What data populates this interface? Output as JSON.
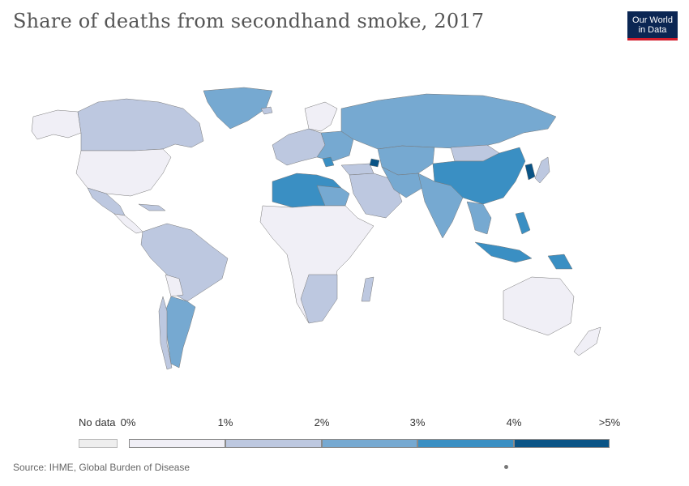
{
  "title": "Share of deaths from secondhand smoke, 2017",
  "logo": {
    "line1": "Our World",
    "line2": "in Data"
  },
  "legend": {
    "no_data_label": "No data",
    "ticks": [
      "0%",
      "1%",
      "2%",
      "3%",
      "4%",
      ">5%"
    ],
    "bins": [
      {
        "range": "0%–1%",
        "color": "#f0eff6"
      },
      {
        "range": "1%–2%",
        "color": "#bdc8e0"
      },
      {
        "range": "2%–3%",
        "color": "#76a9d1"
      },
      {
        "range": "3%–4%",
        "color": "#3a8fc3"
      },
      {
        "range": "4%–5%",
        "color": "#0a5486"
      }
    ],
    "no_data_color": "#eeeeee"
  },
  "source": "Source: IHME, Global Burden of Disease",
  "map_colors": {
    "bin0": "#f0eff6",
    "bin1": "#bdc8e0",
    "bin2": "#76a9d1",
    "bin3": "#3a8fc3",
    "bin4": "#0a5486"
  }
}
